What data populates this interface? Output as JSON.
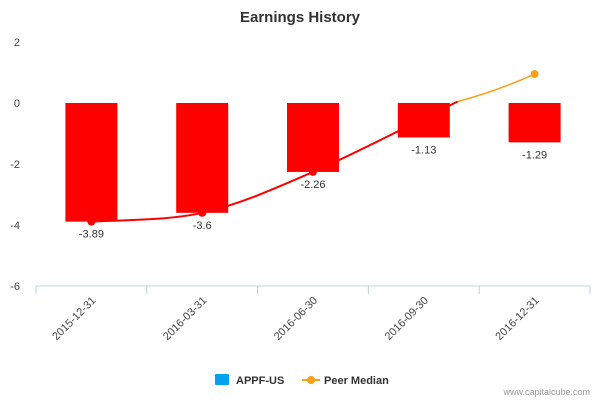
{
  "chart_data": {
    "type": "bar",
    "title": "Earnings History",
    "xlabel": "",
    "ylabel": "",
    "categories": [
      "2015-12-31",
      "2016-03-31",
      "2016-06-30",
      "2016-09-30",
      "2016-12-31"
    ],
    "ylim": [
      -6,
      2
    ],
    "yticks": [
      2,
      0,
      -2,
      -4,
      -6
    ],
    "grid": false,
    "legend_position": "bottom",
    "series": [
      {
        "name": "APPF-US",
        "type": "bar",
        "values": [
          -3.89,
          -3.6,
          -2.26,
          -1.13,
          -1.29
        ],
        "labels": [
          "-3.89",
          "-3.6",
          "-2.26",
          "-1.13",
          "-1.29"
        ],
        "color": "#ff0000",
        "legend_color": "#00a2ed"
      },
      {
        "name": "Peer Median",
        "type": "line",
        "values": [
          -3.89,
          -3.6,
          -2.26,
          null,
          0.95
        ],
        "color": "#ff0000",
        "projected_color": "#f7a11a",
        "legend_color": "#f7a11a"
      }
    ],
    "credit": "www.capitalcube.com"
  }
}
